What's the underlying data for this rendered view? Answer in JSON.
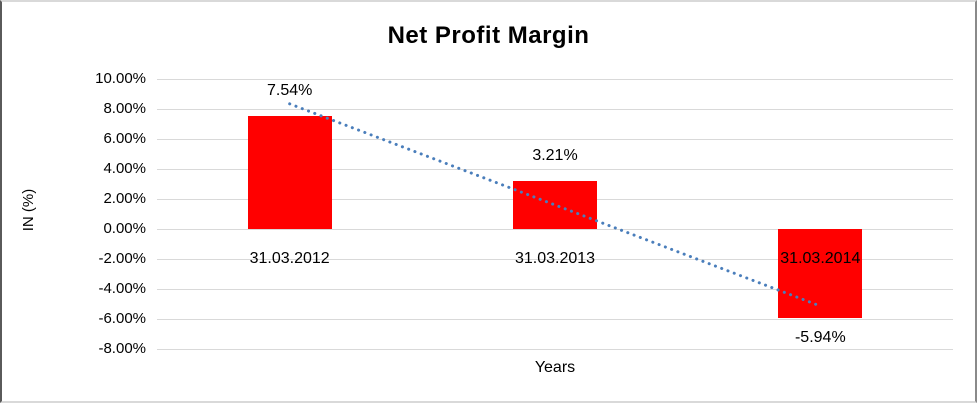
{
  "chart_data": {
    "type": "bar",
    "title": "Net Profit Margin",
    "xlabel": "Years",
    "ylabel": "IN (%)",
    "categories": [
      "31.03.2012",
      "31.03.2013",
      "31.03.2014"
    ],
    "series": [
      {
        "name": "Net Profit Margin",
        "values": [
          7.54,
          3.21,
          -5.94
        ]
      }
    ],
    "data_labels": [
      "7.54%",
      "3.21%",
      "-5.94%"
    ],
    "y_ticks": [
      {
        "label": "10.00%",
        "value": 10
      },
      {
        "label": "8.00%",
        "value": 8
      },
      {
        "label": "6.00%",
        "value": 6
      },
      {
        "label": "4.00%",
        "value": 4
      },
      {
        "label": "2.00%",
        "value": 2
      },
      {
        "label": "0.00%",
        "value": 0
      },
      {
        "label": "-2.00%",
        "value": -2
      },
      {
        "label": "-4.00%",
        "value": -4
      },
      {
        "label": "-6.00%",
        "value": -6
      },
      {
        "label": "-8.00%",
        "value": -8
      }
    ],
    "ylim": [
      -8,
      10
    ],
    "grid": true,
    "legend_position": "none",
    "trendline": {
      "type": "linear",
      "style": "dotted"
    },
    "colors": {
      "bar": "#ff0000",
      "trendline": "#4a7ebb",
      "gridline": "#d9d9d9",
      "text": "#000000",
      "background": "#ffffff"
    }
  }
}
